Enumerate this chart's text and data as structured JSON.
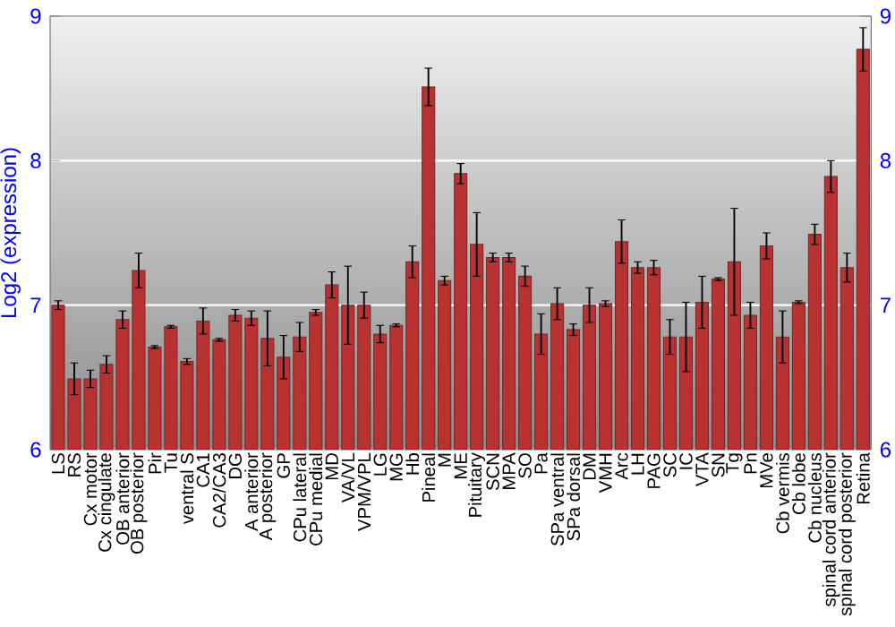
{
  "chart_data": {
    "type": "bar",
    "ylabel": "Log2 (expression)",
    "categories": [
      "LS",
      "RS",
      "Cx motor",
      "Cx cingulate",
      "OB anterior",
      "OB posterior",
      "Pir",
      "Tu",
      "ventral S",
      "CA1",
      "CA2/CA3",
      "DG",
      "A anterior",
      "A posterior",
      "GP",
      "CPu lateral",
      "CPu medial",
      "MD",
      "VA/VL",
      "VPM/VPL",
      "LG",
      "MG",
      "Hb",
      "Pineal",
      "M",
      "ME",
      "Pituitary",
      "SCN",
      "MPA",
      "SO",
      "Pa",
      "SPa ventral",
      "SPa dorsal",
      "DM",
      "VMH",
      "Arc",
      "LH",
      "PAG",
      "SC",
      "IC",
      "VTA",
      "SN",
      "Tg",
      "Pn",
      "MVe",
      "Cb vermis",
      "Cb lobe",
      "Cb nucleus",
      "spinal cord anterior",
      "spinal cord posterior",
      "Retina"
    ],
    "values": [
      7.0,
      6.49,
      6.49,
      6.59,
      6.9,
      7.24,
      6.71,
      6.85,
      6.61,
      6.89,
      6.76,
      6.93,
      6.91,
      6.77,
      6.64,
      6.78,
      6.95,
      7.14,
      7.0,
      7.0,
      6.8,
      6.86,
      7.3,
      8.51,
      7.17,
      7.91,
      7.42,
      7.33,
      7.33,
      7.2,
      6.8,
      7.01,
      6.83,
      7.0,
      7.01,
      7.44,
      7.26,
      7.26,
      6.78,
      6.78,
      7.02,
      7.18,
      7.3,
      6.93,
      7.41,
      6.78,
      7.02,
      7.49,
      7.89,
      7.26,
      8.77
    ],
    "errors": [
      0.03,
      0.11,
      0.06,
      0.06,
      0.06,
      0.12,
      0.01,
      0.01,
      0.02,
      0.09,
      0.01,
      0.04,
      0.05,
      0.19,
      0.15,
      0.1,
      0.02,
      0.09,
      0.27,
      0.09,
      0.06,
      0.01,
      0.11,
      0.13,
      0.03,
      0.07,
      0.22,
      0.03,
      0.03,
      0.07,
      0.14,
      0.11,
      0.04,
      0.12,
      0.02,
      0.15,
      0.04,
      0.05,
      0.12,
      0.24,
      0.18,
      0.01,
      0.37,
      0.09,
      0.09,
      0.18,
      0.01,
      0.07,
      0.11,
      0.1,
      0.15
    ],
    "color": "#b83232",
    "ylim": [
      6,
      9
    ],
    "yticks": [
      6,
      7,
      8,
      9
    ],
    "y2lim": [
      6,
      9
    ],
    "y2ticks": [
      6,
      7,
      8,
      9
    ],
    "grid": "y"
  }
}
